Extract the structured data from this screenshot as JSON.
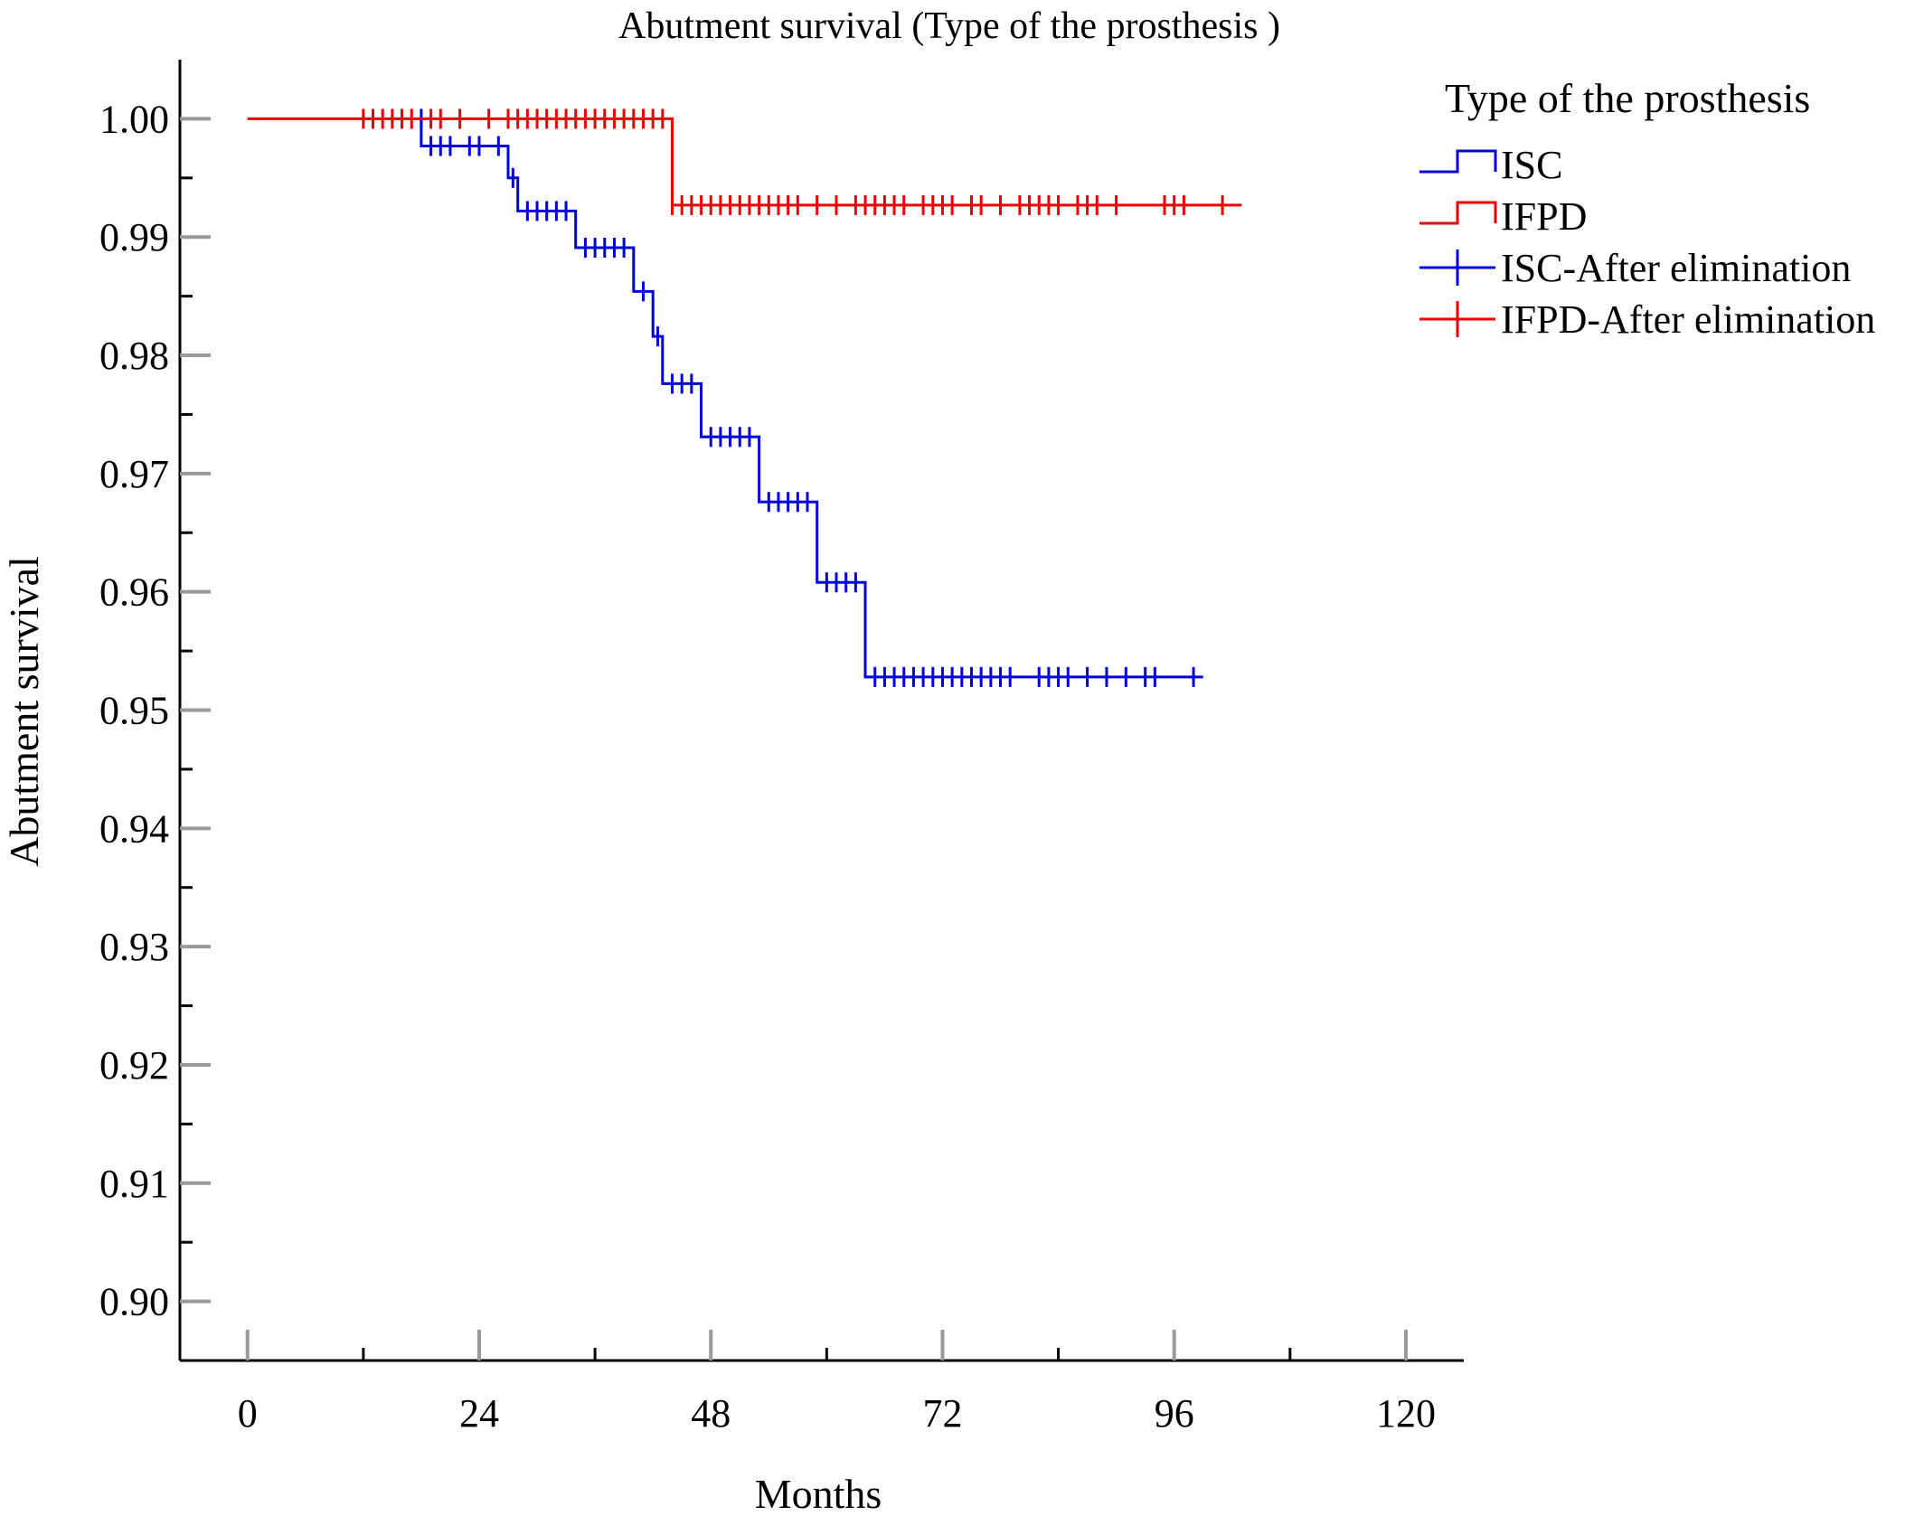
{
  "chart_data": {
    "type": "line",
    "subtype": "kaplan-meier step",
    "title": "Abutment survival (Type of the prosthesis )",
    "xlabel": "Months",
    "ylabel": "Abutment survival",
    "xlim": [
      -7,
      126
    ],
    "ylim": [
      0.895,
      1.005
    ],
    "xticks": [
      0,
      24,
      48,
      72,
      96,
      120
    ],
    "xtick_labels": [
      "0",
      "24",
      "48",
      "72",
      "96",
      "120"
    ],
    "yticks": [
      0.9,
      0.91,
      0.92,
      0.93,
      0.94,
      0.95,
      0.96,
      0.97,
      0.98,
      0.99,
      1.0
    ],
    "ytick_labels": [
      "0.90",
      "0.91",
      "0.92",
      "0.93",
      "0.94",
      "0.95",
      "0.96",
      "0.97",
      "0.98",
      "0.99",
      "1.00"
    ],
    "grid": false,
    "legend_position": "top-right",
    "legend_title": "Type of the prosthesis",
    "legend": [
      {
        "label": "ISC",
        "kind": "step",
        "color": "#0000dd"
      },
      {
        "label": "IFPD",
        "kind": "step",
        "color": "#ee0000"
      },
      {
        "label": "ISC-After elimination",
        "kind": "censor",
        "color": "#0000dd"
      },
      {
        "label": "IFPD-After elimination",
        "kind": "censor",
        "color": "#ee0000"
      }
    ],
    "series": [
      {
        "name": "ISC",
        "color": "#0000dd",
        "steps": [
          [
            18,
            1.0
          ],
          [
            18,
            0.9977
          ],
          [
            27,
            0.9977
          ],
          [
            27,
            0.995
          ],
          [
            28,
            0.995
          ],
          [
            28,
            0.9922
          ],
          [
            34,
            0.9922
          ],
          [
            34,
            0.9891
          ],
          [
            40,
            0.9891
          ],
          [
            40,
            0.9854
          ],
          [
            42,
            0.9854
          ],
          [
            42,
            0.9816
          ],
          [
            43,
            0.9816
          ],
          [
            43,
            0.9776
          ],
          [
            47,
            0.9776
          ],
          [
            47,
            0.9731
          ],
          [
            53,
            0.9731
          ],
          [
            53,
            0.9676
          ],
          [
            59,
            0.9676
          ],
          [
            59,
            0.9608
          ],
          [
            64,
            0.9608
          ],
          [
            64,
            0.9528
          ],
          [
            99,
            0.9528
          ]
        ],
        "censored": [
          {
            "y": 1.0,
            "x": [
              18
            ]
          },
          {
            "y": 0.9977,
            "x": [
              19,
              20,
              21,
              23,
              24,
              26
            ]
          },
          {
            "y": 0.995,
            "x": [
              27.5
            ]
          },
          {
            "y": 0.9922,
            "x": [
              29,
              30,
              31,
              32,
              33
            ]
          },
          {
            "y": 0.9891,
            "x": [
              35,
              36,
              37,
              38,
              39
            ]
          },
          {
            "y": 0.9854,
            "x": [
              41
            ]
          },
          {
            "y": 0.9816,
            "x": [
              42.5
            ]
          },
          {
            "y": 0.9776,
            "x": [
              44,
              45,
              46
            ]
          },
          {
            "y": 0.9731,
            "x": [
              48,
              49,
              50,
              51,
              52
            ]
          },
          {
            "y": 0.9676,
            "x": [
              54,
              55,
              56,
              57,
              58
            ]
          },
          {
            "y": 0.9608,
            "x": [
              60,
              61,
              62,
              63
            ]
          },
          {
            "y": 0.9528,
            "x": [
              65,
              66,
              67,
              68,
              69,
              70,
              71,
              72,
              73,
              74,
              75,
              76,
              77,
              78,
              79,
              82,
              83,
              84,
              85,
              87,
              89,
              91,
              93,
              94,
              98
            ]
          }
        ]
      },
      {
        "name": "IFPD",
        "color": "#ee0000",
        "steps": [
          [
            0,
            1.0
          ],
          [
            44,
            1.0
          ],
          [
            44,
            0.9927
          ],
          [
            103,
            0.9927
          ]
        ],
        "censored": [
          {
            "y": 1.0,
            "x": [
              12,
              13,
              14,
              15,
              16,
              17,
              19,
              20,
              22,
              25,
              27,
              28,
              29,
              30,
              31,
              32,
              33,
              34,
              35,
              36,
              37,
              38,
              39,
              40,
              41,
              42,
              43
            ]
          },
          {
            "y": 0.9927,
            "x": [
              44,
              45,
              46,
              47,
              48,
              49,
              50,
              51,
              52,
              53,
              54,
              55,
              56,
              57,
              59,
              61,
              63,
              64,
              65,
              66,
              67,
              68,
              70,
              71,
              72,
              73,
              75,
              76,
              78,
              80,
              81,
              82,
              83,
              84,
              86,
              87,
              88,
              90,
              95,
              96,
              97,
              101
            ]
          }
        ]
      }
    ]
  }
}
